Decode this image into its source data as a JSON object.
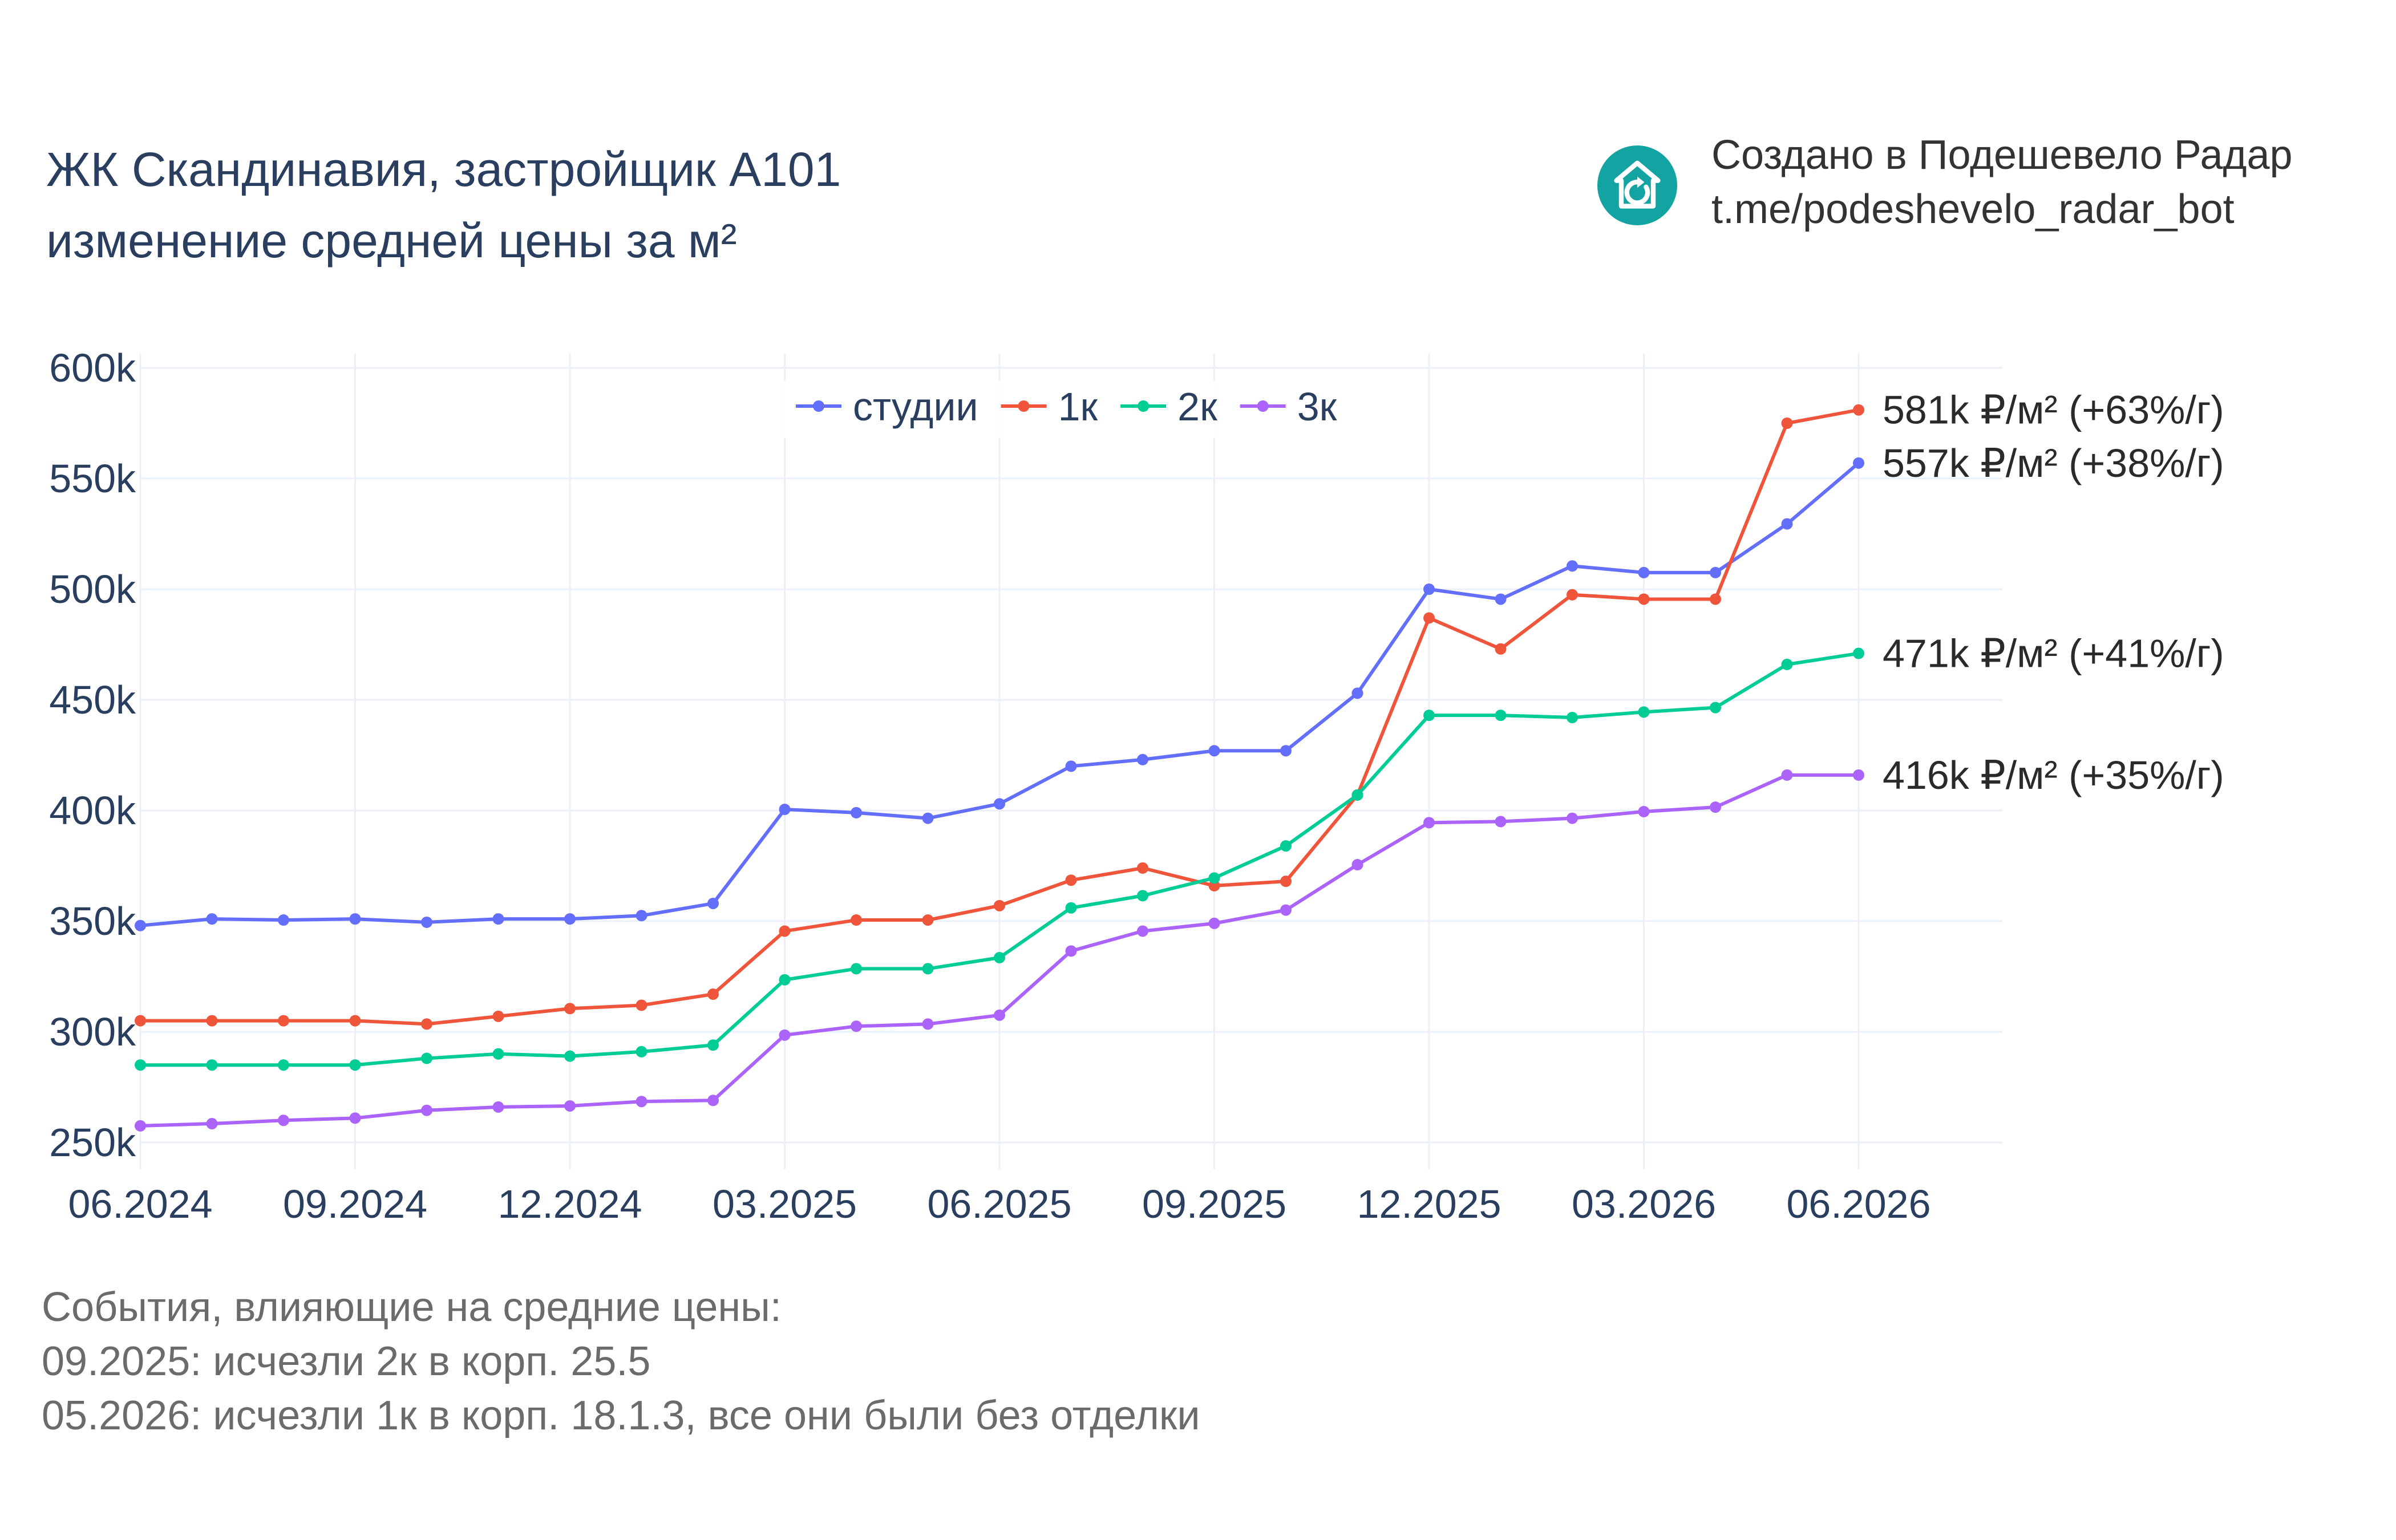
{
  "title": {
    "line1": "ЖК Скандинавия, застройщик А101",
    "line2": "изменение средней цены за м²"
  },
  "brand": {
    "line1": "Создано в Подешевело Радар",
    "line2": "t.me/podeshevelo_radar_bot",
    "icon": "house-refresh-icon",
    "color": "#13a3a3"
  },
  "events": {
    "heading": "События, влияющие на средние цены:",
    "items": [
      "09.2025: исчезли 2к в корп. 25.5",
      "05.2026: исчезли 1к в корп. 18.1.3, все они были без отделки"
    ]
  },
  "chart_data": {
    "type": "line",
    "x": [
      "06.2024",
      "07.2024",
      "08.2024",
      "09.2024",
      "10.2024",
      "11.2024",
      "12.2024",
      "01.2025",
      "02.2025",
      "03.2025",
      "04.2025",
      "05.2025",
      "06.2025",
      "07.2025",
      "08.2025",
      "09.2025",
      "10.2025",
      "11.2025",
      "12.2025",
      "01.2026",
      "02.2026",
      "03.2026",
      "04.2026",
      "05.2026",
      "06.2026"
    ],
    "x_tick_labels": [
      "06.2024",
      "09.2024",
      "12.2024",
      "03.2025",
      "06.2025",
      "09.2025",
      "12.2025",
      "03.2026",
      "06.2026"
    ],
    "y_ticks": [
      250000,
      300000,
      350000,
      400000,
      450000,
      500000,
      550000,
      600000
    ],
    "y_tick_labels": [
      "250k",
      "300k",
      "350k",
      "400k",
      "450k",
      "500k",
      "550k",
      "600k"
    ],
    "ylim": [
      240000,
      605000
    ],
    "grid": true,
    "legend_position": "top-center",
    "series": [
      {
        "name": "студии",
        "color": "#636efa",
        "values": [
          348000,
          351000,
          350500,
          351000,
          349500,
          351000,
          351000,
          352500,
          358000,
          400500,
          399000,
          396500,
          403000,
          420000,
          423000,
          427000,
          427000,
          453000,
          500000,
          495500,
          510500,
          507500,
          507500,
          529500,
          557000
        ],
        "end_label": "557k ₽/м² (+38%/г)"
      },
      {
        "name": "1к",
        "color": "#ef553b",
        "values": [
          305000,
          305000,
          305000,
          305000,
          303500,
          307000,
          310500,
          312000,
          317000,
          345500,
          350500,
          350500,
          357000,
          368500,
          374000,
          366000,
          368000,
          407000,
          487000,
          473000,
          497500,
          495500,
          495500,
          575000,
          581000
        ],
        "end_label": "581k ₽/м² (+63%/г)"
      },
      {
        "name": "2к",
        "color": "#00cc96",
        "values": [
          285000,
          285000,
          285000,
          285000,
          288000,
          290000,
          289000,
          291000,
          294000,
          323500,
          328500,
          328500,
          333500,
          356000,
          361500,
          369500,
          384000,
          407000,
          443000,
          443000,
          442000,
          444500,
          446500,
          466000,
          471000
        ],
        "end_label": "471k ₽/м² (+41%/г)"
      },
      {
        "name": "3к",
        "color": "#ab63fa",
        "values": [
          257500,
          258500,
          260000,
          261000,
          264500,
          266000,
          266500,
          268500,
          269000,
          298500,
          302500,
          303500,
          307500,
          336500,
          345500,
          349000,
          355000,
          375500,
          394500,
          395000,
          396500,
          399500,
          401500,
          416000,
          416000
        ],
        "end_label": "416k ₽/м² (+35%/г)"
      }
    ]
  }
}
